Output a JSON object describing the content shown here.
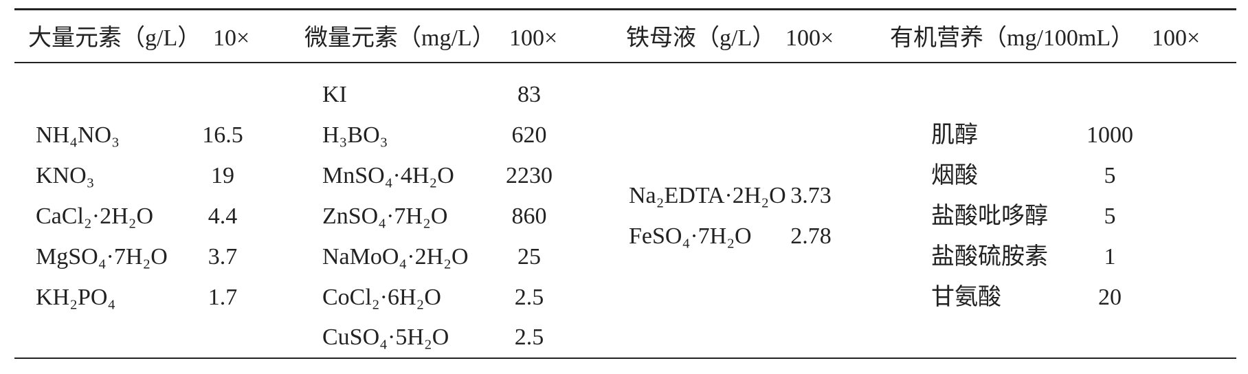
{
  "table": {
    "columns": [
      {
        "header": "大量元素（g/L）",
        "factor": "10×",
        "items": [
          {
            "name": "NH₄NO₃",
            "amount": 16.5
          },
          {
            "name": "KNO₃",
            "amount": 19
          },
          {
            "name": "CaCl₂·2H₂O",
            "amount": 4.4
          },
          {
            "name": "MgSO₄·7H₂O",
            "amount": 3.7
          },
          {
            "name": "KH₂PO₄",
            "amount": 1.7
          }
        ]
      },
      {
        "header": "微量元素（mg/L）",
        "factor": "100×",
        "items": [
          {
            "name": "KI",
            "amount": 83
          },
          {
            "name": "H₃BO₃",
            "amount": 620
          },
          {
            "name": "MnSO₄·4H₂O",
            "amount": 2230
          },
          {
            "name": "ZnSO₄·7H₂O",
            "amount": 860
          },
          {
            "name": "NaMoO₄·2H₂O",
            "amount": 25
          },
          {
            "name": "CoCl₂·6H₂O",
            "amount": 2.5
          },
          {
            "name": "CuSO₄·5H₂O",
            "amount": 2.5
          }
        ]
      },
      {
        "header": "铁母液（g/L）",
        "factor": "100×",
        "items": [
          {
            "name": "Na₂EDTA·2H₂O",
            "amount": 3.73
          },
          {
            "name": "FeSO₄·7H₂O",
            "amount": 2.78
          }
        ]
      },
      {
        "header": "有机营养（mg/100mL）",
        "factor": "100×",
        "items": [
          {
            "name": "肌醇",
            "amount": 1000
          },
          {
            "name": "烟酸",
            "amount": 5
          },
          {
            "name": "盐酸吡哆醇",
            "amount": 5
          },
          {
            "name": "盐酸硫胺素",
            "amount": 1
          },
          {
            "name": "甘氨酸",
            "amount": 20
          }
        ]
      }
    ]
  }
}
